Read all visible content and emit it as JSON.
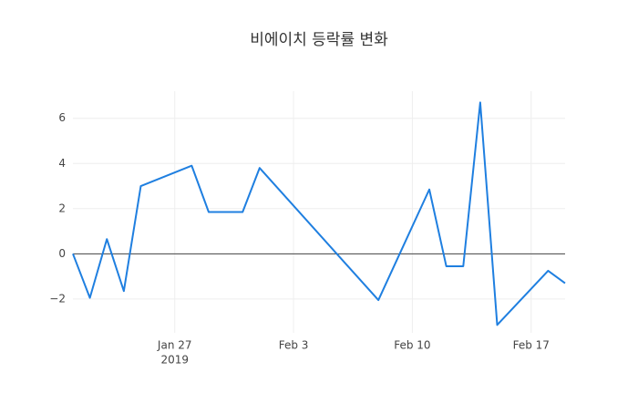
{
  "chart_data": {
    "type": "line",
    "title": "비에이치 등락률 변화",
    "x": [
      "2019-01-21",
      "2019-01-22",
      "2019-01-23",
      "2019-01-24",
      "2019-01-25",
      "2019-01-28",
      "2019-01-29",
      "2019-01-30",
      "2019-01-31",
      "2019-02-01",
      "2019-02-08",
      "2019-02-11",
      "2019-02-12",
      "2019-02-13",
      "2019-02-14",
      "2019-02-15",
      "2019-02-18",
      "2019-02-19"
    ],
    "series": [
      {
        "color": "#1f7fe0",
        "values": [
          0,
          -1.95,
          0.65,
          -1.65,
          3.0,
          3.9,
          1.85,
          1.85,
          1.85,
          3.8,
          -2.05,
          2.85,
          -0.55,
          -0.55,
          6.7,
          -3.15,
          -0.75,
          -1.3
        ]
      }
    ],
    "xlim": [
      "2019-01-21",
      "2019-02-19"
    ],
    "xticks": [
      {
        "value": "2019-01-27",
        "label": [
          "Jan 27",
          "2019"
        ]
      },
      {
        "value": "2019-02-03",
        "label": [
          "Feb 3"
        ]
      },
      {
        "value": "2019-02-10",
        "label": [
          "Feb 10"
        ]
      },
      {
        "value": "2019-02-17",
        "label": [
          "Feb 17"
        ]
      }
    ],
    "ylim": [
      -3.5,
      7.2
    ],
    "yticks": [
      {
        "value": -2,
        "label": "−2"
      },
      0,
      2,
      4,
      6
    ],
    "grid": true,
    "zeroline": true
  }
}
